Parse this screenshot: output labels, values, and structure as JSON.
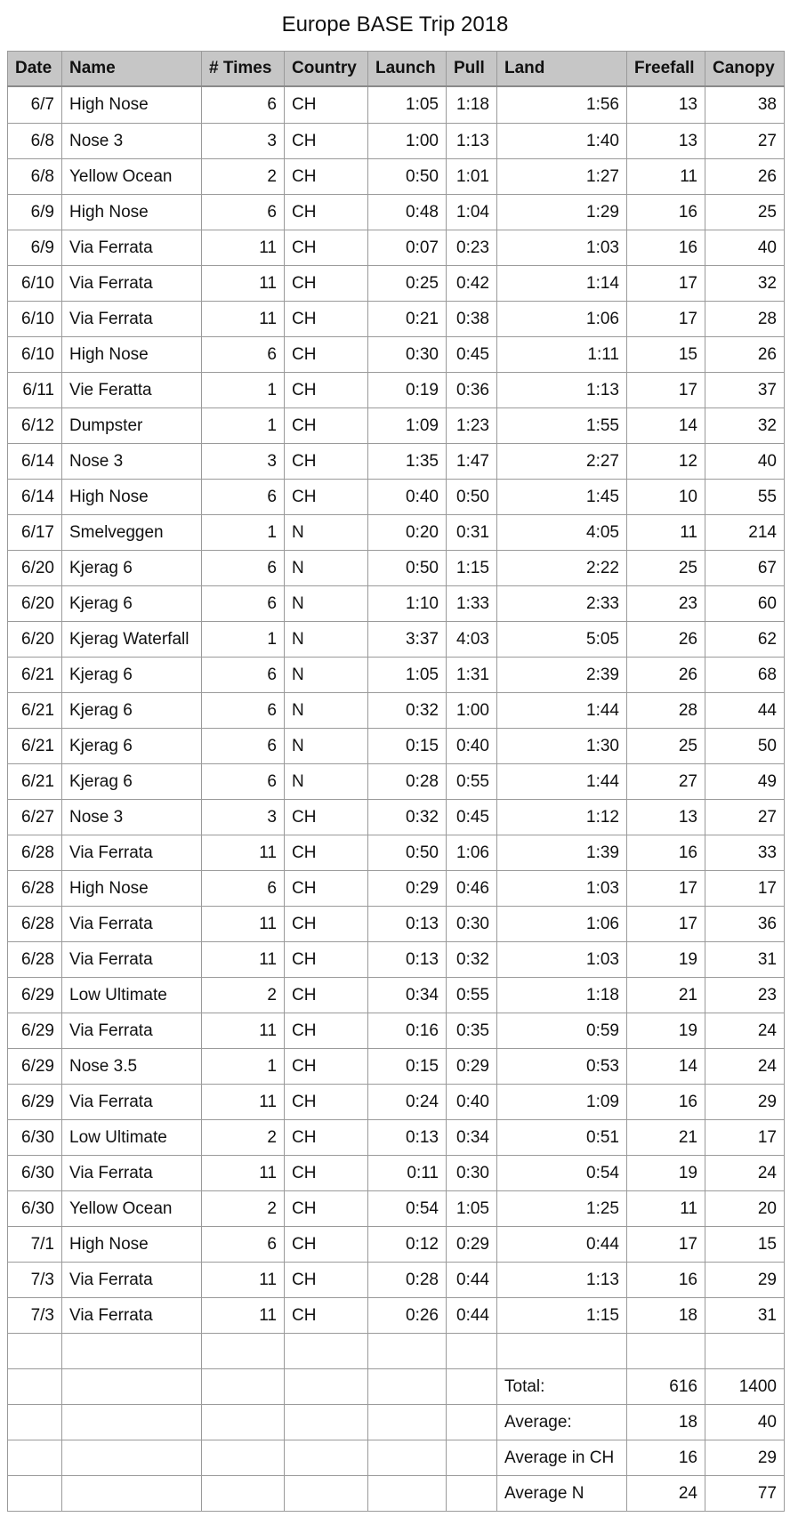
{
  "title": "Europe BASE Trip 2018",
  "columns": [
    "Date",
    "Name",
    "# Times",
    "Country",
    "Launch",
    "Pull",
    "Land",
    "Freefall",
    "Canopy"
  ],
  "rows": [
    [
      "6/7",
      "High Nose",
      "6",
      "CH",
      "1:05",
      "1:18",
      "1:56",
      "13",
      "38"
    ],
    [
      "6/8",
      "Nose 3",
      "3",
      "CH",
      "1:00",
      "1:13",
      "1:40",
      "13",
      "27"
    ],
    [
      "6/8",
      "Yellow Ocean",
      "2",
      "CH",
      "0:50",
      "1:01",
      "1:27",
      "11",
      "26"
    ],
    [
      "6/9",
      "High Nose",
      "6",
      "CH",
      "0:48",
      "1:04",
      "1:29",
      "16",
      "25"
    ],
    [
      "6/9",
      "Via Ferrata",
      "11",
      "CH",
      "0:07",
      "0:23",
      "1:03",
      "16",
      "40"
    ],
    [
      "6/10",
      "Via Ferrata",
      "11",
      "CH",
      "0:25",
      "0:42",
      "1:14",
      "17",
      "32"
    ],
    [
      "6/10",
      "Via Ferrata",
      "11",
      "CH",
      "0:21",
      "0:38",
      "1:06",
      "17",
      "28"
    ],
    [
      "6/10",
      "High Nose",
      "6",
      "CH",
      "0:30",
      "0:45",
      "1:11",
      "15",
      "26"
    ],
    [
      "6/11",
      "Vie Feratta",
      "1",
      "CH",
      "0:19",
      "0:36",
      "1:13",
      "17",
      "37"
    ],
    [
      "6/12",
      "Dumpster",
      "1",
      "CH",
      "1:09",
      "1:23",
      "1:55",
      "14",
      "32"
    ],
    [
      "6/14",
      "Nose 3",
      "3",
      "CH",
      "1:35",
      "1:47",
      "2:27",
      "12",
      "40"
    ],
    [
      "6/14",
      "High Nose",
      "6",
      "CH",
      "0:40",
      "0:50",
      "1:45",
      "10",
      "55"
    ],
    [
      "6/17",
      "Smelveggen",
      "1",
      "N",
      "0:20",
      "0:31",
      "4:05",
      "11",
      "214"
    ],
    [
      "6/20",
      "Kjerag 6",
      "6",
      "N",
      "0:50",
      "1:15",
      "2:22",
      "25",
      "67"
    ],
    [
      "6/20",
      "Kjerag 6",
      "6",
      "N",
      "1:10",
      "1:33",
      "2:33",
      "23",
      "60"
    ],
    [
      "6/20",
      "Kjerag Waterfall",
      "1",
      "N",
      "3:37",
      "4:03",
      "5:05",
      "26",
      "62"
    ],
    [
      "6/21",
      "Kjerag 6",
      "6",
      "N",
      "1:05",
      "1:31",
      "2:39",
      "26",
      "68"
    ],
    [
      "6/21",
      "Kjerag 6",
      "6",
      "N",
      "0:32",
      "1:00",
      "1:44",
      "28",
      "44"
    ],
    [
      "6/21",
      "Kjerag 6",
      "6",
      "N",
      "0:15",
      "0:40",
      "1:30",
      "25",
      "50"
    ],
    [
      "6/21",
      "Kjerag 6",
      "6",
      "N",
      "0:28",
      "0:55",
      "1:44",
      "27",
      "49"
    ],
    [
      "6/27",
      "Nose 3",
      "3",
      "CH",
      "0:32",
      "0:45",
      "1:12",
      "13",
      "27"
    ],
    [
      "6/28",
      "Via Ferrata",
      "11",
      "CH",
      "0:50",
      "1:06",
      "1:39",
      "16",
      "33"
    ],
    [
      "6/28",
      "High Nose",
      "6",
      "CH",
      "0:29",
      "0:46",
      "1:03",
      "17",
      "17"
    ],
    [
      "6/28",
      "Via Ferrata",
      "11",
      "CH",
      "0:13",
      "0:30",
      "1:06",
      "17",
      "36"
    ],
    [
      "6/28",
      "Via Ferrata",
      "11",
      "CH",
      "0:13",
      "0:32",
      "1:03",
      "19",
      "31"
    ],
    [
      "6/29",
      "Low Ultimate",
      "2",
      "CH",
      "0:34",
      "0:55",
      "1:18",
      "21",
      "23"
    ],
    [
      "6/29",
      "Via Ferrata",
      "11",
      "CH",
      "0:16",
      "0:35",
      "0:59",
      "19",
      "24"
    ],
    [
      "6/29",
      "Nose 3.5",
      "1",
      "CH",
      "0:15",
      "0:29",
      "0:53",
      "14",
      "24"
    ],
    [
      "6/29",
      "Via Ferrata",
      "11",
      "CH",
      "0:24",
      "0:40",
      "1:09",
      "16",
      "29"
    ],
    [
      "6/30",
      "Low Ultimate",
      "2",
      "CH",
      "0:13",
      "0:34",
      "0:51",
      "21",
      "17"
    ],
    [
      "6/30",
      "Via Ferrata",
      "11",
      "CH",
      "0:11",
      "0:30",
      "0:54",
      "19",
      "24"
    ],
    [
      "6/30",
      "Yellow Ocean",
      "2",
      "CH",
      "0:54",
      "1:05",
      "1:25",
      "11",
      "20"
    ],
    [
      "7/1",
      "High Nose",
      "6",
      "CH",
      "0:12",
      "0:29",
      "0:44",
      "17",
      "15"
    ],
    [
      "7/3",
      "Via Ferrata",
      "11",
      "CH",
      "0:28",
      "0:44",
      "1:13",
      "16",
      "29"
    ],
    [
      "7/3",
      "Via Ferrata",
      "11",
      "CH",
      "0:26",
      "0:44",
      "1:15",
      "18",
      "31"
    ]
  ],
  "summary": [
    {
      "label": "Total:",
      "freefall": "616",
      "canopy": "1400"
    },
    {
      "label": "Average:",
      "freefall": "18",
      "canopy": "40"
    },
    {
      "label": "Average in CH",
      "freefall": "16",
      "canopy": "29"
    },
    {
      "label": "Average N",
      "freefall": "24",
      "canopy": "77"
    }
  ]
}
